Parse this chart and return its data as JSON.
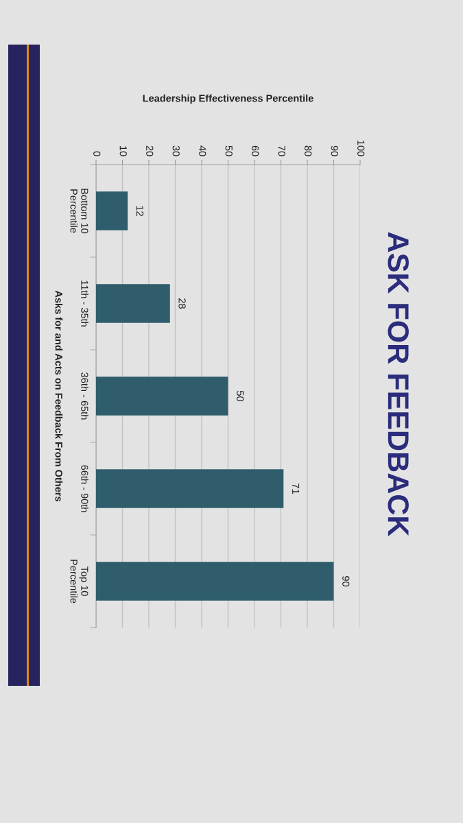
{
  "chart_data": {
    "type": "bar",
    "orientation": "horizontal",
    "title": "ASK FOR FEEDBACK",
    "xlabel": "Leadership Effectiveness Percentile",
    "ylabel": "Asks for and Acts on Feedback From Others",
    "categories": [
      "Bottom 10\nPercentile",
      "11th - 35th",
      "36th - 65th",
      "66th - 90th",
      "Top 10\nPercentile"
    ],
    "values": [
      12,
      28,
      50,
      71,
      90
    ],
    "color": "#2f5d6b",
    "xlim": [
      0,
      100
    ],
    "xticks": [
      0,
      10,
      20,
      30,
      40,
      50,
      60,
      70,
      80,
      90,
      100
    ],
    "grid": "x",
    "data_labels": true
  }
}
